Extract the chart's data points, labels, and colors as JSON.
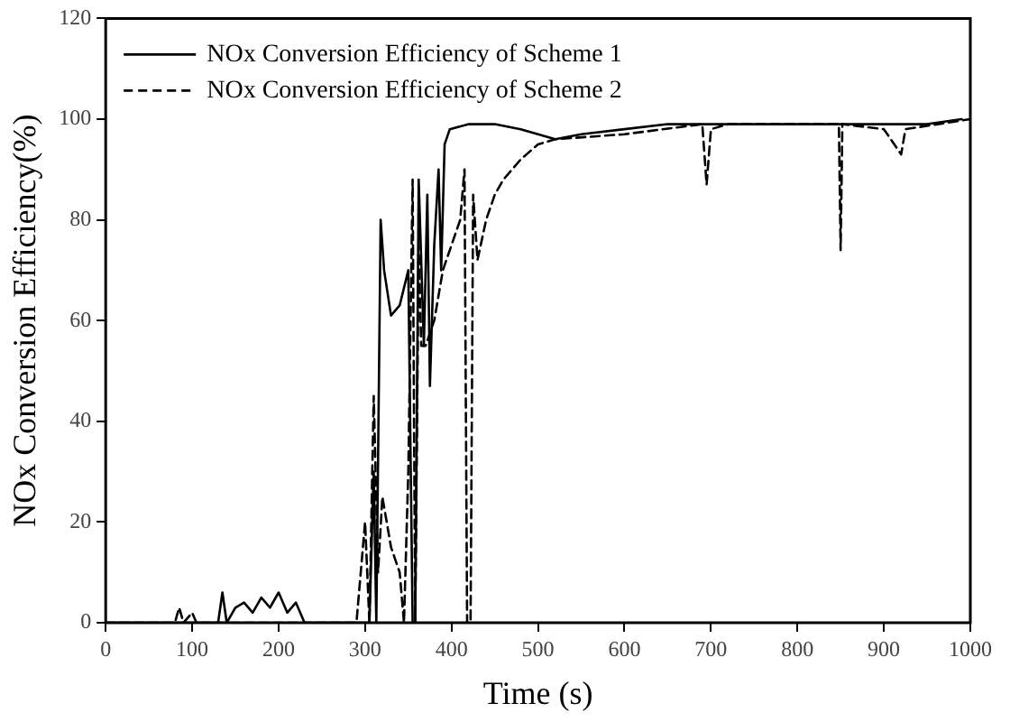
{
  "chart_data": {
    "type": "line",
    "xlabel": "Time (s)",
    "ylabel": "NOx Conversion Efficiency(%)",
    "xlim": [
      0,
      1000
    ],
    "xticks": [
      0,
      100,
      200,
      300,
      400,
      500,
      600,
      700,
      800,
      900,
      1000
    ],
    "ylim": [
      0,
      120
    ],
    "yticks": [
      0,
      20,
      40,
      60,
      80,
      100,
      120
    ],
    "grid": false,
    "legend": "top left",
    "marker": "none",
    "series": [
      {
        "name": "NOx Conversion Efficiency of Scheme 1",
        "color": "#000000",
        "line_style": "solid",
        "x": [
          0,
          130,
          135,
          140,
          150,
          160,
          170,
          180,
          190,
          200,
          210,
          220,
          230,
          290,
          305,
          310,
          313,
          318,
          322,
          330,
          340,
          350,
          355,
          358,
          362,
          368,
          372,
          375,
          380,
          385,
          388,
          392,
          398,
          420,
          450,
          480,
          500,
          520,
          550,
          600,
          650,
          700,
          750,
          800,
          850,
          900,
          950,
          990
        ],
        "values": [
          0,
          0,
          6,
          0,
          3,
          4,
          2,
          5,
          3,
          6,
          2,
          4,
          0,
          0,
          0,
          30,
          0,
          80,
          70,
          61,
          63,
          70,
          0,
          0,
          88,
          55,
          85,
          47,
          75,
          90,
          70,
          95,
          98,
          99,
          99,
          98,
          97,
          96,
          97,
          98,
          99,
          99,
          99,
          99,
          99,
          99,
          99,
          100
        ]
      },
      {
        "name": "NOx Conversion Efficiency of Scheme 2",
        "color": "#000000",
        "line_style": "dashed",
        "x": [
          0,
          80,
          85,
          90,
          100,
          105,
          290,
          300,
          305,
          310,
          315,
          320,
          330,
          340,
          345,
          350,
          355,
          358,
          362,
          365,
          370,
          380,
          390,
          400,
          410,
          415,
          418,
          422,
          425,
          430,
          440,
          450,
          460,
          480,
          500,
          520,
          600,
          690,
          695,
          700,
          720,
          800,
          848,
          850,
          852,
          900,
          920,
          925,
          1000
        ],
        "values": [
          0,
          0,
          3,
          0,
          2,
          0,
          0,
          20,
          0,
          45,
          10,
          25,
          15,
          10,
          0,
          30,
          88,
          0,
          75,
          55,
          55,
          60,
          70,
          75,
          80,
          90,
          0,
          0,
          85,
          72,
          80,
          85,
          88,
          92,
          95,
          96,
          97,
          99,
          87,
          98,
          99,
          99,
          99,
          74,
          99,
          98,
          93,
          98,
          100
        ]
      }
    ]
  }
}
